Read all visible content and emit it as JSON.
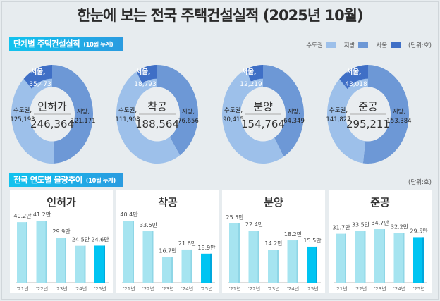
{
  "title": "한눈에 보는 전국 주택건설실적 (2025년 10월)",
  "section1": {
    "label": "단계별 주택건설실적",
    "sub": "(10월 누계)",
    "unit": "(단위:호)",
    "legend": [
      {
        "label": "수도권",
        "color": "#9dc0ea"
      },
      {
        "label": "지방",
        "color": "#6d98d6"
      },
      {
        "label": "서울",
        "color": "#3f6fc6"
      }
    ]
  },
  "section2": {
    "label": "전국 연도별 물량추이",
    "sub": "(10월 누계)",
    "unit": "(단위:호)"
  },
  "chart_data": [
    {
      "type": "pie",
      "title": "인허가",
      "total": "246,364",
      "slices": [
        {
          "name": "수도권",
          "value": 125193,
          "label": "125,193"
        },
        {
          "name": "지방",
          "value": 121171,
          "label": "121,171"
        },
        {
          "name": "서울",
          "value": 35473,
          "label": "35,473"
        }
      ]
    },
    {
      "type": "pie",
      "title": "착공",
      "total": "188,564",
      "slices": [
        {
          "name": "수도권",
          "value": 111908,
          "label": "111,908"
        },
        {
          "name": "지방",
          "value": 76656,
          "label": "76,656"
        },
        {
          "name": "서울",
          "value": 18793,
          "label": "18,793"
        }
      ]
    },
    {
      "type": "pie",
      "title": "분양",
      "total": "154,764",
      "slices": [
        {
          "name": "수도권",
          "value": 90415,
          "label": "90,415"
        },
        {
          "name": "지방",
          "value": 64349,
          "label": "64,349"
        },
        {
          "name": "서울",
          "value": 12219,
          "label": "12,219"
        }
      ]
    },
    {
      "type": "pie",
      "title": "준공",
      "total": "295,211",
      "slices": [
        {
          "name": "수도권",
          "value": 141827,
          "label": "141,827"
        },
        {
          "name": "지방",
          "value": 153384,
          "label": "153,384"
        },
        {
          "name": "서울",
          "value": 43018,
          "label": "43,018"
        }
      ]
    },
    {
      "type": "bar",
      "title": "인허가",
      "categories": [
        "'21년",
        "'22년",
        "'23년",
        "'24년",
        "'25년"
      ],
      "values": [
        40.2,
        41.2,
        29.9,
        24.5,
        24.6
      ],
      "labels": [
        "40.2만",
        "41.2만",
        "29.9만",
        "24.5만",
        "24.6만"
      ]
    },
    {
      "type": "bar",
      "title": "착공",
      "categories": [
        "'21년",
        "'22년",
        "'23년",
        "'24년",
        "'25년"
      ],
      "values": [
        40.4,
        33.5,
        16.7,
        21.6,
        18.9
      ],
      "labels": [
        "40.4만",
        "33.5만",
        "16.7만",
        "21.6만",
        "18.9만"
      ]
    },
    {
      "type": "bar",
      "title": "분양",
      "categories": [
        "'21년",
        "'22년",
        "'23년",
        "'24년",
        "'25년"
      ],
      "values": [
        25.5,
        22.4,
        14.2,
        18.2,
        15.5
      ],
      "labels": [
        "25.5만",
        "22.4만",
        "14.2만",
        "18.2만",
        "15.5만"
      ]
    },
    {
      "type": "bar",
      "title": "준공",
      "categories": [
        "'21년",
        "'22년",
        "'23년",
        "'24년",
        "'25년"
      ],
      "values": [
        31.7,
        33.5,
        34.7,
        32.2,
        29.5
      ],
      "labels": [
        "31.7만",
        "33.5만",
        "34.7만",
        "32.2만",
        "29.5만"
      ]
    }
  ],
  "colors": {
    "bar": "#a6e4f0",
    "bar_current": "#00c4f2"
  }
}
